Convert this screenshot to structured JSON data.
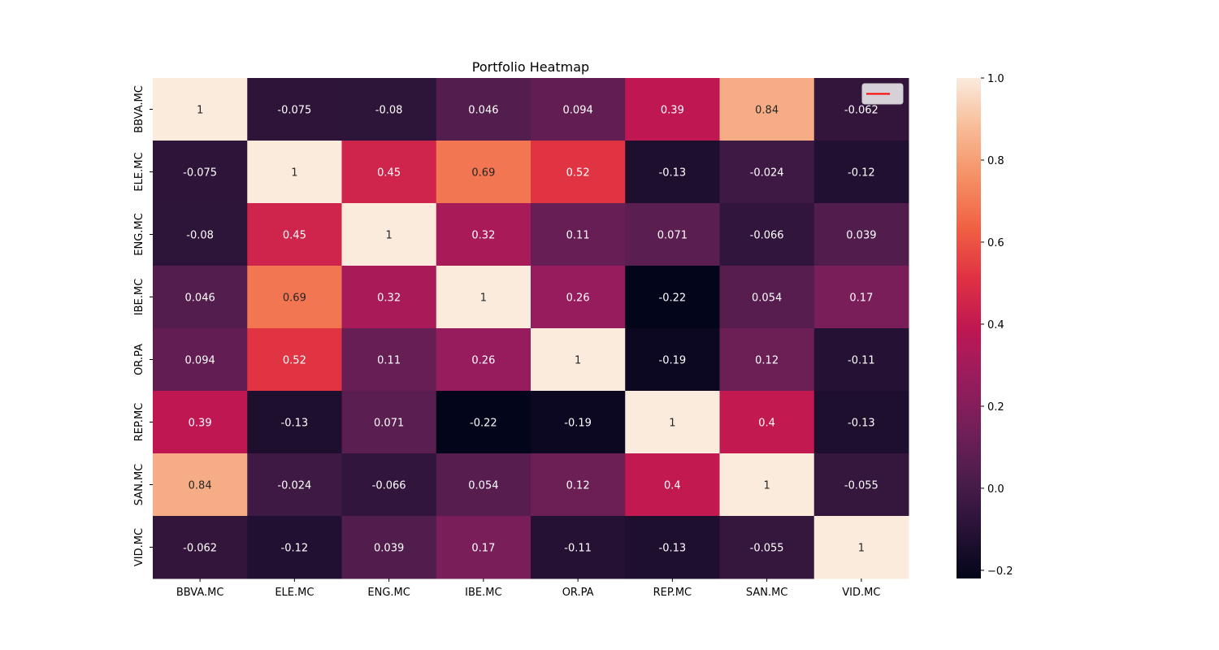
{
  "chart_data": {
    "type": "heatmap",
    "title": "Portfolio Heatmap",
    "x_labels": [
      "BBVA.MC",
      "ELE.MC",
      "ENG.MC",
      "IBE.MC",
      "OR.PA",
      "REP.MC",
      "SAN.MC",
      "VID.MC"
    ],
    "y_labels": [
      "BBVA.MC",
      "ELE.MC",
      "ENG.MC",
      "IBE.MC",
      "OR.PA",
      "REP.MC",
      "SAN.MC",
      "VID.MC"
    ],
    "values": [
      [
        1,
        -0.075,
        -0.08,
        0.046,
        0.094,
        0.39,
        0.84,
        -0.062
      ],
      [
        -0.075,
        1,
        0.45,
        0.69,
        0.52,
        -0.13,
        -0.024,
        -0.12
      ],
      [
        -0.08,
        0.45,
        1,
        0.32,
        0.11,
        0.071,
        -0.066,
        0.039
      ],
      [
        0.046,
        0.69,
        0.32,
        1,
        0.26,
        -0.22,
        0.054,
        0.17
      ],
      [
        0.094,
        0.52,
        0.11,
        0.26,
        1,
        -0.19,
        0.12,
        -0.11
      ],
      [
        0.39,
        -0.13,
        0.071,
        -0.22,
        -0.19,
        1,
        0.4,
        -0.13
      ],
      [
        0.84,
        -0.024,
        -0.066,
        0.054,
        0.12,
        0.4,
        1,
        -0.055
      ],
      [
        -0.062,
        -0.12,
        0.039,
        0.17,
        -0.11,
        -0.13,
        -0.055,
        1
      ]
    ],
    "value_labels": [
      [
        "1",
        "-0.075",
        "-0.08",
        "0.046",
        "0.094",
        "0.39",
        "0.84",
        "-0.062"
      ],
      [
        "-0.075",
        "1",
        "0.45",
        "0.69",
        "0.52",
        "-0.13",
        "-0.024",
        "-0.12"
      ],
      [
        "-0.08",
        "0.45",
        "1",
        "0.32",
        "0.11",
        "0.071",
        "-0.066",
        "0.039"
      ],
      [
        "0.046",
        "0.69",
        "0.32",
        "1",
        "0.26",
        "-0.22",
        "0.054",
        "0.17"
      ],
      [
        "0.094",
        "0.52",
        "0.11",
        "0.26",
        "1",
        "-0.19",
        "0.12",
        "-0.11"
      ],
      [
        "0.39",
        "-0.13",
        "0.071",
        "-0.22",
        "-0.19",
        "1",
        "0.4",
        "-0.13"
      ],
      [
        "0.84",
        "-0.024",
        "-0.066",
        "0.054",
        "0.12",
        "0.4",
        "1",
        "-0.055"
      ],
      [
        "-0.062",
        "-0.12",
        "0.039",
        "0.17",
        "-0.11",
        "-0.13",
        "-0.055",
        "1"
      ]
    ],
    "vmin": -0.22,
    "vmax": 1,
    "colormap": "rocket",
    "colorbar": {
      "ticks": [
        -0.2,
        0.0,
        0.2,
        0.4,
        0.6,
        0.8,
        1.0
      ],
      "tick_labels": [
        "−0.2",
        "0.0",
        "0.2",
        "0.4",
        "0.6",
        "0.8",
        "1.0"
      ]
    },
    "legend": {
      "placement": "top-right",
      "line_color": "#ff0000"
    }
  }
}
